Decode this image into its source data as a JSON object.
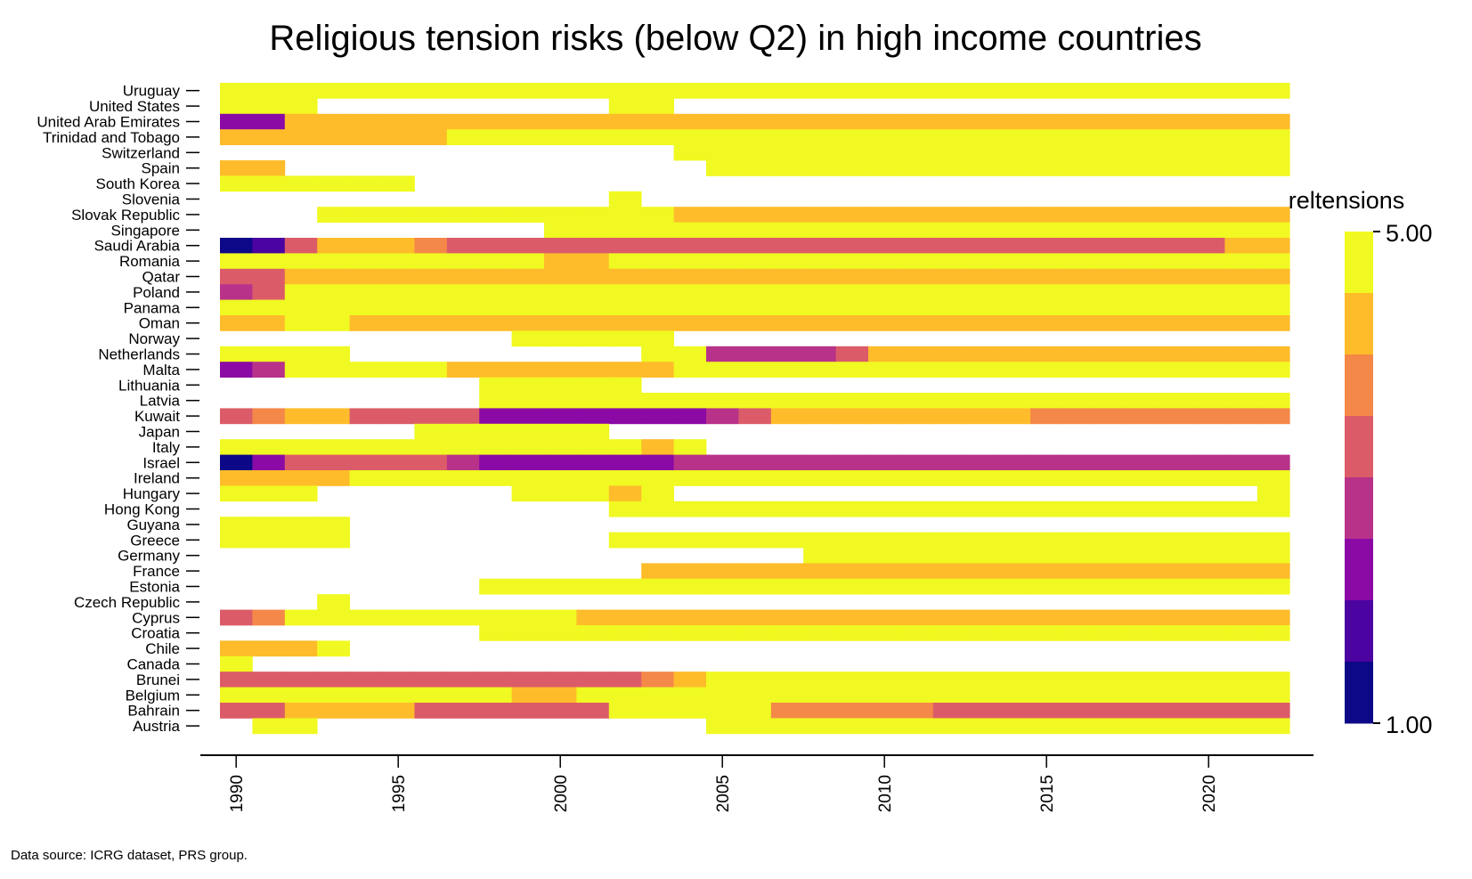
{
  "chart_data": {
    "type": "heatmap",
    "title": "Religious tension risks (below Q2) in high income countries",
    "caption": "Data source: ICRG dataset, PRS group.",
    "xlabel": "",
    "ylabel": "",
    "x_range": [
      1990,
      2022
    ],
    "x_ticks": [
      1990,
      1995,
      2000,
      2005,
      2010,
      2015,
      2020
    ],
    "value_range": [
      1.0,
      5.0
    ],
    "legend": {
      "title": "reltensions",
      "max_label": "5.00",
      "min_label": "1.00",
      "placement": "right",
      "colors": [
        "#0d0887",
        "#4b03a1",
        "#8b0aa5",
        "#b83289",
        "#db5c68",
        "#f48849",
        "#febc2a",
        "#f0f921"
      ]
    },
    "countries": [
      {
        "name": "Uruguay",
        "runs": [
          [
            1990,
            2022,
            5
          ]
        ]
      },
      {
        "name": "United States",
        "runs": [
          [
            1990,
            1992,
            5
          ],
          [
            2002,
            2003,
            5
          ]
        ]
      },
      {
        "name": "United Arab Emirates",
        "runs": [
          [
            1990,
            1991,
            2
          ],
          [
            1992,
            2022,
            4.5
          ]
        ]
      },
      {
        "name": "Trinidad and Tobago",
        "runs": [
          [
            1990,
            1996,
            4.5
          ],
          [
            1997,
            2022,
            5
          ]
        ]
      },
      {
        "name": "Switzerland",
        "runs": [
          [
            2004,
            2022,
            5
          ]
        ]
      },
      {
        "name": "Spain",
        "runs": [
          [
            1990,
            1991,
            4.5
          ],
          [
            2005,
            2022,
            5
          ]
        ]
      },
      {
        "name": "South Korea",
        "runs": [
          [
            1990,
            1995,
            5
          ]
        ]
      },
      {
        "name": "Slovenia",
        "runs": [
          [
            2002,
            2002,
            5
          ]
        ]
      },
      {
        "name": "Slovak Republic",
        "runs": [
          [
            1993,
            2003,
            5
          ],
          [
            2004,
            2022,
            4.5
          ]
        ]
      },
      {
        "name": "Singapore",
        "runs": [
          [
            2000,
            2022,
            5
          ]
        ]
      },
      {
        "name": "Saudi Arabia",
        "runs": [
          [
            1990,
            1990,
            1
          ],
          [
            1991,
            1991,
            1.5
          ],
          [
            1992,
            1992,
            3
          ],
          [
            1993,
            1995,
            4.5
          ],
          [
            1996,
            1996,
            4
          ],
          [
            1997,
            2009,
            3
          ],
          [
            2010,
            2020,
            3.5
          ],
          [
            2021,
            2022,
            4.5
          ]
        ]
      },
      {
        "name": "Romania",
        "runs": [
          [
            1990,
            1999,
            5
          ],
          [
            2000,
            2001,
            4.5
          ],
          [
            2002,
            2022,
            5
          ]
        ]
      },
      {
        "name": "Qatar",
        "runs": [
          [
            1990,
            1991,
            3
          ],
          [
            1992,
            2022,
            4.5
          ]
        ]
      },
      {
        "name": "Poland",
        "runs": [
          [
            1990,
            1990,
            2.5
          ],
          [
            1991,
            1991,
            3
          ],
          [
            1992,
            2022,
            5
          ]
        ]
      },
      {
        "name": "Panama",
        "runs": [
          [
            1990,
            2022,
            5
          ]
        ]
      },
      {
        "name": "Oman",
        "runs": [
          [
            1990,
            1991,
            4.5
          ],
          [
            1992,
            1993,
            5
          ],
          [
            1994,
            2022,
            4.5
          ]
        ]
      },
      {
        "name": "Norway",
        "runs": [
          [
            1999,
            2003,
            5
          ]
        ]
      },
      {
        "name": "Netherlands",
        "runs": [
          [
            1990,
            1993,
            5
          ],
          [
            2003,
            2004,
            5
          ],
          [
            2005,
            2008,
            2.5
          ],
          [
            2009,
            2009,
            3
          ],
          [
            2010,
            2022,
            4.5
          ]
        ]
      },
      {
        "name": "Malta",
        "runs": [
          [
            1990,
            1990,
            2
          ],
          [
            1991,
            1991,
            2.5
          ],
          [
            1992,
            1996,
            5
          ],
          [
            1997,
            2003,
            4.5
          ],
          [
            2004,
            2022,
            5
          ]
        ]
      },
      {
        "name": "Lithuania",
        "runs": [
          [
            1998,
            2002,
            5
          ]
        ]
      },
      {
        "name": "Latvia",
        "runs": [
          [
            1998,
            2022,
            5
          ]
        ]
      },
      {
        "name": "Kuwait",
        "runs": [
          [
            1990,
            1990,
            3
          ],
          [
            1991,
            1991,
            4
          ],
          [
            1992,
            1993,
            4.5
          ],
          [
            1994,
            1997,
            3
          ],
          [
            1998,
            2004,
            2
          ],
          [
            2005,
            2005,
            2.5
          ],
          [
            2006,
            2006,
            3
          ],
          [
            2007,
            2014,
            4.5
          ],
          [
            2015,
            2022,
            4
          ]
        ]
      },
      {
        "name": "Japan",
        "runs": [
          [
            1996,
            2001,
            5
          ]
        ]
      },
      {
        "name": "Italy",
        "runs": [
          [
            1990,
            2002,
            5
          ],
          [
            2003,
            2003,
            4.5
          ],
          [
            2004,
            2004,
            5
          ]
        ]
      },
      {
        "name": "Israel",
        "runs": [
          [
            1990,
            1990,
            1
          ],
          [
            1991,
            1991,
            2
          ],
          [
            1992,
            1996,
            3
          ],
          [
            1997,
            1997,
            2.5
          ],
          [
            1998,
            2003,
            2
          ],
          [
            2004,
            2022,
            2.5
          ]
        ]
      },
      {
        "name": "Ireland",
        "runs": [
          [
            1990,
            1993,
            4.5
          ],
          [
            1994,
            2022,
            5
          ]
        ]
      },
      {
        "name": "Hungary",
        "runs": [
          [
            1990,
            1992,
            5
          ],
          [
            1999,
            2001,
            5
          ],
          [
            2002,
            2002,
            4.5
          ],
          [
            2003,
            2003,
            5
          ],
          [
            2022,
            2022,
            5
          ]
        ]
      },
      {
        "name": "Hong Kong",
        "runs": [
          [
            2002,
            2022,
            5
          ]
        ]
      },
      {
        "name": "Guyana",
        "runs": [
          [
            1990,
            1993,
            5
          ]
        ]
      },
      {
        "name": "Greece",
        "runs": [
          [
            1990,
            1993,
            5
          ],
          [
            2002,
            2022,
            5
          ]
        ]
      },
      {
        "name": "Germany",
        "runs": [
          [
            2008,
            2022,
            5
          ]
        ]
      },
      {
        "name": "France",
        "runs": [
          [
            2003,
            2022,
            4.5
          ]
        ]
      },
      {
        "name": "Estonia",
        "runs": [
          [
            1998,
            2022,
            5
          ]
        ]
      },
      {
        "name": "Czech Republic",
        "runs": [
          [
            1993,
            1993,
            5
          ]
        ]
      },
      {
        "name": "Cyprus",
        "runs": [
          [
            1990,
            1990,
            3
          ],
          [
            1991,
            1991,
            4
          ],
          [
            1992,
            2000,
            5
          ],
          [
            2001,
            2022,
            4.5
          ]
        ]
      },
      {
        "name": "Croatia",
        "runs": [
          [
            1998,
            2022,
            5
          ]
        ]
      },
      {
        "name": "Chile",
        "runs": [
          [
            1990,
            1992,
            4.5
          ],
          [
            1993,
            1993,
            5
          ]
        ]
      },
      {
        "name": "Canada",
        "runs": [
          [
            1990,
            1990,
            5
          ]
        ]
      },
      {
        "name": "Brunei",
        "runs": [
          [
            1990,
            2002,
            3
          ],
          [
            2003,
            2003,
            4
          ],
          [
            2004,
            2004,
            4.5
          ],
          [
            2005,
            2022,
            5
          ]
        ]
      },
      {
        "name": "Belgium",
        "runs": [
          [
            1990,
            1998,
            5
          ],
          [
            1999,
            2000,
            4.5
          ],
          [
            2001,
            2022,
            5
          ]
        ]
      },
      {
        "name": "Bahrain",
        "runs": [
          [
            1990,
            1991,
            3
          ],
          [
            1992,
            1995,
            4.5
          ],
          [
            1996,
            2001,
            3
          ],
          [
            2002,
            2006,
            5
          ],
          [
            2007,
            2011,
            4
          ],
          [
            2012,
            2022,
            3
          ]
        ]
      },
      {
        "name": "Austria",
        "runs": [
          [
            1991,
            1992,
            5
          ],
          [
            2005,
            2022,
            5
          ]
        ]
      }
    ]
  }
}
